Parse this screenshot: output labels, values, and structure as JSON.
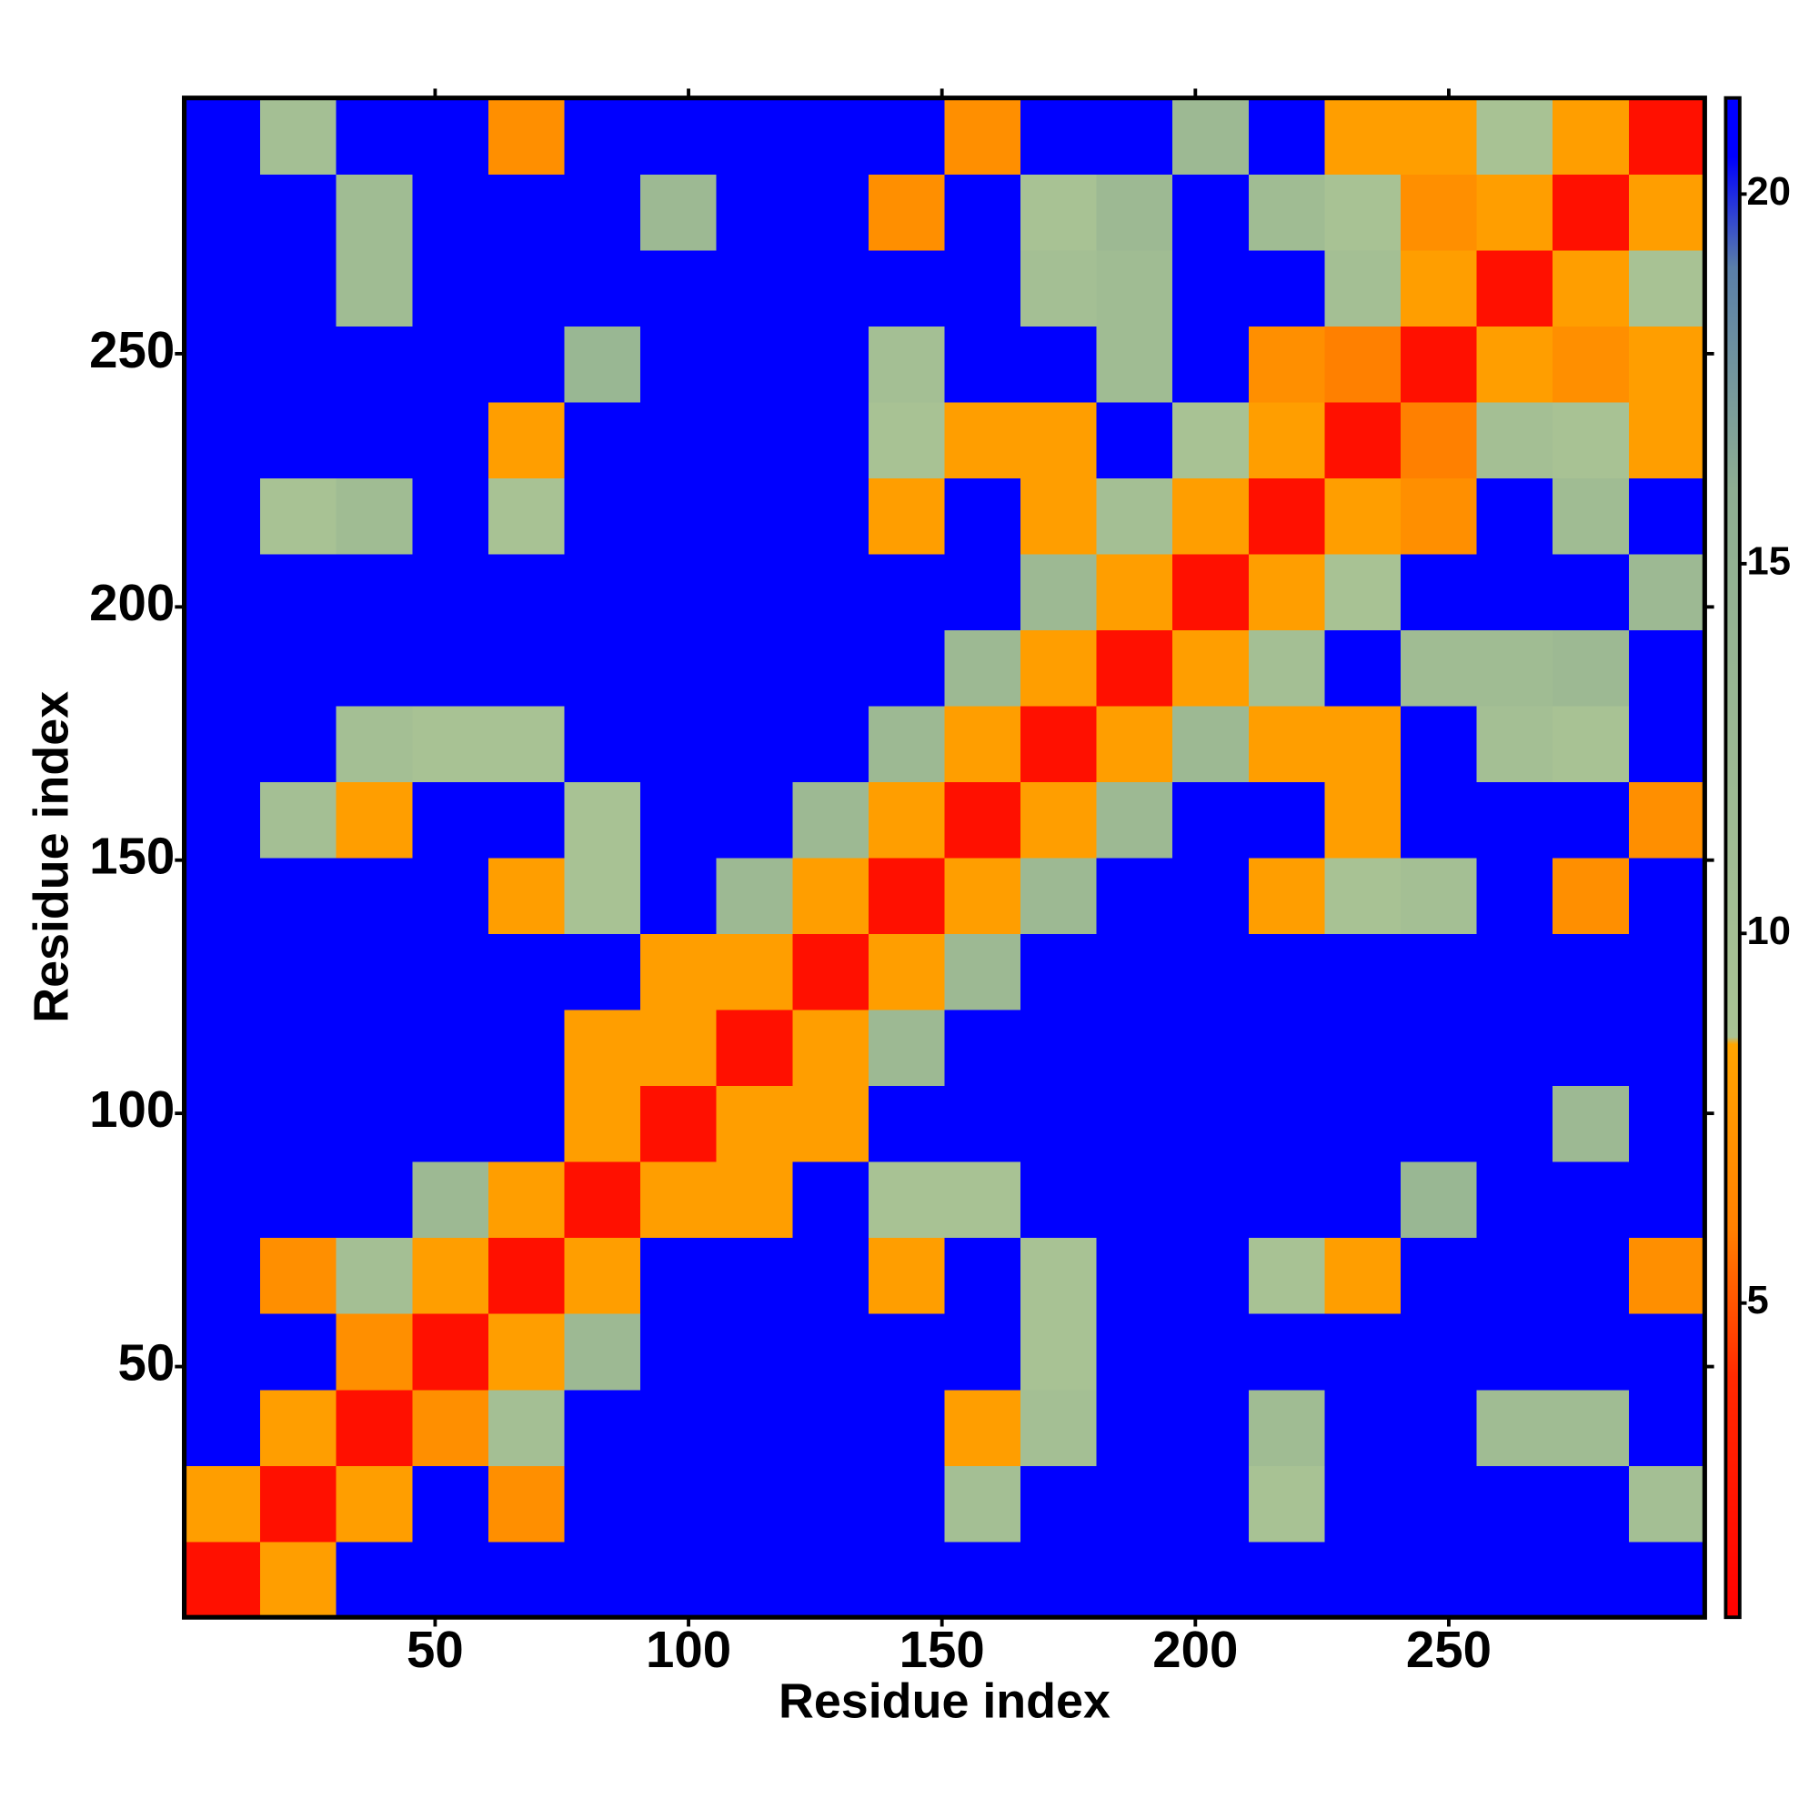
{
  "chart_data": {
    "type": "heatmap",
    "x_label": "Residue index",
    "y_label": "Residue index",
    "xlim": [
      0.5,
      300.5
    ],
    "ylim": [
      0.5,
      300.5
    ],
    "xticks": [
      50,
      100,
      150,
      200,
      250
    ],
    "yticks": [
      50,
      100,
      150,
      200,
      250
    ],
    "x_bins": [
      0.5,
      15.5,
      30.5,
      45.5,
      60.5,
      75.5,
      90.5,
      105.5,
      120.5,
      135.5,
      150.5,
      165.5,
      180.5,
      195.5,
      210.5,
      225.5,
      240.5,
      255.5,
      270.5,
      285.5,
      300.5
    ],
    "y_bins": [
      0.5,
      15.5,
      30.5,
      45.5,
      60.5,
      75.5,
      90.5,
      105.5,
      120.5,
      135.5,
      150.5,
      165.5,
      180.5,
      195.5,
      210.5,
      225.5,
      240.5,
      255.5,
      270.5,
      285.5,
      300.5
    ],
    "z": [
      [
        2,
        8,
        21,
        21,
        21,
        21,
        21,
        21,
        21,
        21,
        21,
        21,
        21,
        21,
        21,
        21,
        21,
        21,
        21,
        21
      ],
      [
        8,
        2,
        8,
        21,
        7,
        21,
        21,
        21,
        21,
        21,
        10,
        21,
        21,
        21,
        9,
        21,
        21,
        21,
        21,
        10
      ],
      [
        21,
        8,
        2,
        7,
        10,
        21,
        21,
        21,
        21,
        21,
        8,
        10,
        21,
        21,
        11,
        21,
        21,
        11,
        11,
        21
      ],
      [
        21,
        21,
        7,
        2,
        8,
        12,
        21,
        21,
        21,
        21,
        21,
        9,
        21,
        21,
        21,
        21,
        21,
        21,
        21,
        21
      ],
      [
        21,
        7,
        10,
        8,
        2,
        8,
        21,
        21,
        21,
        8,
        21,
        9,
        21,
        21,
        9,
        8,
        21,
        21,
        21,
        7
      ],
      [
        21,
        21,
        21,
        12,
        8,
        2,
        8,
        8,
        21,
        9,
        9,
        21,
        21,
        21,
        21,
        21,
        13,
        21,
        21,
        21
      ],
      [
        21,
        21,
        21,
        21,
        21,
        8,
        2,
        8,
        8,
        21,
        21,
        21,
        21,
        21,
        21,
        21,
        21,
        21,
        12,
        21
      ],
      [
        21,
        21,
        21,
        21,
        21,
        8,
        8,
        2,
        8,
        12,
        21,
        21,
        21,
        21,
        21,
        21,
        21,
        21,
        21,
        21
      ],
      [
        21,
        21,
        21,
        21,
        21,
        21,
        8,
        8,
        2,
        8,
        12,
        21,
        21,
        21,
        21,
        21,
        21,
        21,
        21,
        21
      ],
      [
        21,
        21,
        21,
        21,
        8,
        9,
        21,
        12,
        8,
        2,
        8,
        12,
        21,
        21,
        8,
        9,
        10,
        21,
        7,
        21
      ],
      [
        21,
        10,
        8,
        21,
        21,
        9,
        21,
        21,
        12,
        8,
        2,
        8,
        12,
        21,
        21,
        8,
        21,
        21,
        21,
        7
      ],
      [
        21,
        21,
        10,
        9,
        9,
        21,
        21,
        21,
        21,
        12,
        8,
        2,
        8,
        12,
        8,
        8,
        21,
        10,
        9,
        21
      ],
      [
        21,
        21,
        21,
        21,
        21,
        21,
        21,
        21,
        21,
        21,
        12,
        8,
        2,
        8,
        10,
        21,
        11,
        11,
        12,
        21
      ],
      [
        21,
        21,
        21,
        21,
        21,
        21,
        21,
        21,
        21,
        21,
        21,
        12,
        8,
        2,
        8,
        9,
        21,
        21,
        21,
        12
      ],
      [
        21,
        9,
        11,
        21,
        9,
        21,
        21,
        21,
        21,
        8,
        21,
        8,
        10,
        8,
        2,
        8,
        7,
        21,
        11,
        21
      ],
      [
        21,
        21,
        21,
        21,
        8,
        21,
        21,
        21,
        21,
        9,
        8,
        8,
        21,
        9,
        8,
        2,
        6,
        10,
        9,
        8
      ],
      [
        21,
        21,
        21,
        21,
        21,
        13,
        21,
        21,
        21,
        10,
        21,
        21,
        11,
        21,
        7,
        6,
        2,
        8,
        7,
        8
      ],
      [
        21,
        21,
        11,
        21,
        21,
        21,
        21,
        21,
        21,
        21,
        21,
        10,
        11,
        21,
        21,
        10,
        8,
        2,
        8,
        9
      ],
      [
        21,
        21,
        11,
        21,
        21,
        21,
        12,
        21,
        21,
        7,
        21,
        9,
        12,
        21,
        11,
        9,
        7,
        8,
        2,
        8
      ],
      [
        21,
        10,
        21,
        21,
        7,
        21,
        21,
        21,
        21,
        21,
        7,
        21,
        21,
        12,
        21,
        8,
        8,
        9,
        8,
        2
      ]
    ],
    "zlim": [
      0.75,
      21.3
    ],
    "zticks": [
      5,
      10,
      15,
      20
    ],
    "colorscale": [
      [
        0.75,
        "#ff0000"
      ],
      [
        4,
        "#ff2a00"
      ],
      [
        6,
        "#ff8000"
      ],
      [
        8.5,
        "#ffa500"
      ],
      [
        8.6,
        "#a9c394"
      ],
      [
        16,
        "#8eae92"
      ],
      [
        19,
        "#5a7fa8"
      ],
      [
        20.5,
        "#0000ff"
      ],
      [
        21.3,
        "#0000ff"
      ]
    ]
  }
}
